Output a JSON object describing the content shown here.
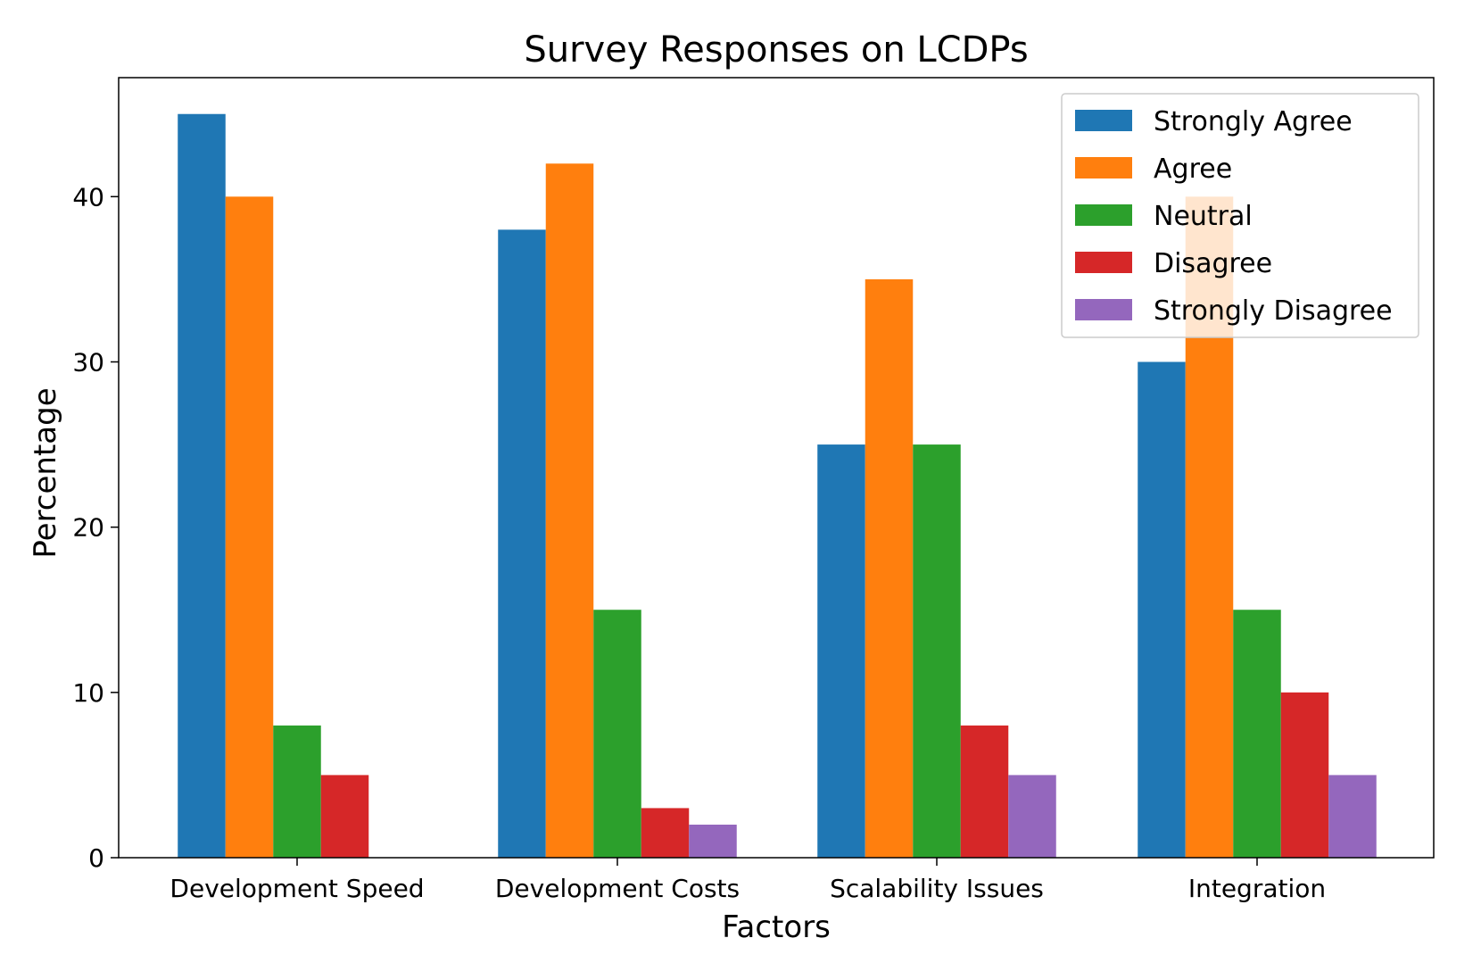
{
  "chart_data": {
    "type": "bar",
    "title": "Survey Responses on LCDPs",
    "xlabel": "Factors",
    "ylabel": "Percentage",
    "categories": [
      "Development Speed",
      "Development Costs",
      "Scalability Issues",
      "Integration"
    ],
    "series": [
      {
        "name": "Strongly Agree",
        "color": "#1f77b4",
        "values": [
          45,
          38,
          25,
          30
        ]
      },
      {
        "name": "Agree",
        "color": "#ff7f0e",
        "values": [
          40,
          42,
          35,
          40
        ]
      },
      {
        "name": "Neutral",
        "color": "#2ca02c",
        "values": [
          8,
          15,
          25,
          15
        ]
      },
      {
        "name": "Disagree",
        "color": "#d62728",
        "values": [
          5,
          3,
          8,
          10
        ]
      },
      {
        "name": "Strongly Disagree",
        "color": "#9467bd",
        "values": [
          0,
          2,
          5,
          5
        ]
      }
    ],
    "ylim": [
      0,
      47.2
    ],
    "yticks": [
      0,
      10,
      20,
      30,
      40
    ],
    "grid": false,
    "legend_position": "top-right"
  }
}
